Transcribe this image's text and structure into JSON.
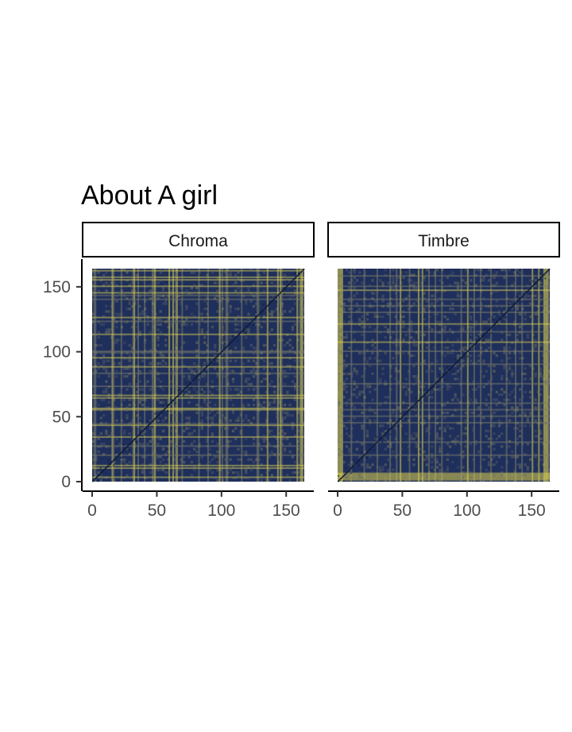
{
  "chart_data": {
    "type": "heatmap",
    "title": "About A girl",
    "xlabel": "",
    "ylabel": "",
    "colors": {
      "low": "#1f2f5c",
      "mid": "#6b6f6a",
      "high": "#f5e54a",
      "diagonal": "#0d1a3a"
    },
    "size": 164,
    "xlim": [
      0,
      164
    ],
    "ylim": [
      0,
      164
    ],
    "x_ticks": [
      0,
      50,
      100,
      150
    ],
    "y_ticks": [
      0,
      50,
      100,
      150
    ],
    "panels": [
      {
        "name": "Chroma",
        "bright_rows": [
          3,
          10,
          12,
          34,
          43,
          55,
          56,
          64,
          66,
          88,
          95,
          113,
          126,
          145,
          150,
          155,
          157,
          162
        ],
        "bright_cols": [
          15,
          32,
          48,
          59,
          62,
          65,
          98,
          135,
          143,
          145,
          158,
          161,
          162
        ],
        "mid_rows": [
          20,
          27,
          44,
          73,
          83,
          99,
          100,
          123,
          140,
          143
        ],
        "mid_cols": [
          1,
          2,
          16,
          22,
          31,
          35,
          40,
          46,
          47,
          64,
          69,
          82,
          89,
          100,
          103,
          104,
          115,
          127,
          128,
          146,
          160
        ]
      },
      {
        "name": "Timbre",
        "bright_rows": [
          1,
          2,
          3,
          4,
          5,
          6,
          107,
          121,
          147
        ],
        "bright_cols": [
          0,
          1,
          2,
          3,
          48,
          62,
          65,
          100,
          150,
          155,
          159,
          160,
          161,
          162
        ],
        "mid_rows": [
          20,
          30,
          45,
          50,
          55,
          60,
          75,
          90,
          100,
          115,
          130,
          135,
          140,
          150,
          158
        ],
        "mid_cols": [
          10,
          20,
          30,
          40,
          45,
          55,
          70,
          75,
          80,
          95,
          105,
          110,
          118,
          130,
          137,
          142
        ]
      }
    ]
  }
}
